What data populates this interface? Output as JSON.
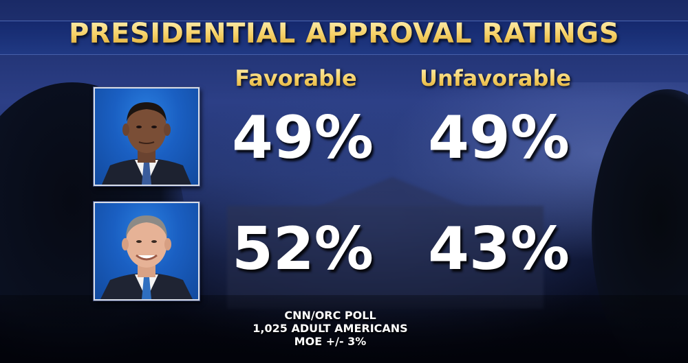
{
  "title": "PRESIDENTIAL APPROVAL RATINGS",
  "columns": {
    "favorable": "Favorable",
    "unfavorable": "Unfavorable"
  },
  "rows": [
    {
      "portrait": "president-portrait-1",
      "favorable": "49%",
      "unfavorable": "49%"
    },
    {
      "portrait": "president-portrait-2",
      "favorable": "52%",
      "unfavorable": "43%"
    }
  ],
  "source": {
    "line1": "CNN/ORC POLL",
    "line2": "1,025 ADULT AMERICANS",
    "line3": "MOE +/- 3%"
  },
  "colors": {
    "title_gold": "#f5cf63",
    "portrait_bg_blue": "#1a5fc2",
    "value_white": "#ffffff"
  },
  "chart_data": {
    "type": "table",
    "title": "PRESIDENTIAL APPROVAL RATINGS",
    "columns": [
      "Favorable",
      "Unfavorable"
    ],
    "rows": [
      {
        "favorable": 49,
        "unfavorable": 49
      },
      {
        "favorable": 52,
        "unfavorable": 43
      }
    ],
    "units": "%"
  }
}
